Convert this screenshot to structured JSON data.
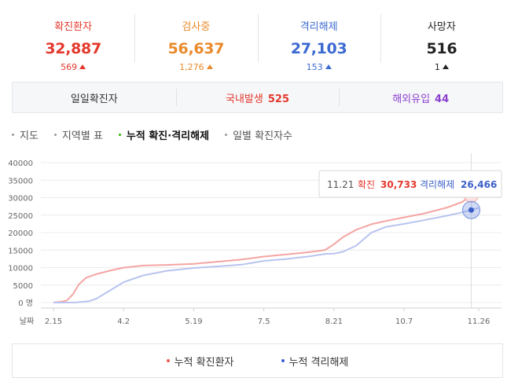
{
  "stats": [
    {
      "label": "확진환자",
      "value": "32,887",
      "delta": "569",
      "color": "#e4382c"
    },
    {
      "label": "검사중",
      "value": "56,637",
      "delta": "1,276",
      "color": "#e98a2c"
    },
    {
      "label": "격리해제",
      "value": "27,103",
      "delta": "153",
      "color": "#3b6ad1"
    },
    {
      "label": "사망자",
      "value": "516",
      "delta": "1",
      "color": "#222222"
    }
  ],
  "daily": {
    "title": "일일확진자",
    "domestic_label": "국내발생",
    "domestic_value": "525",
    "domestic_color": "#e4382c",
    "overseas_label": "해외유입",
    "overseas_value": "44",
    "overseas_color": "#8b3fcf"
  },
  "tabs": [
    {
      "label": "지도",
      "active": false
    },
    {
      "label": "지역별 표",
      "active": false
    },
    {
      "label": "누적 확진·격리해제",
      "active": true
    },
    {
      "label": "일별 확진자수",
      "active": false
    }
  ],
  "chart_data": {
    "type": "line",
    "x_axis_label": "날짜",
    "y_unit": "명",
    "ylim": [
      0,
      40000
    ],
    "yticks": [
      0,
      5000,
      10000,
      15000,
      20000,
      25000,
      30000,
      35000,
      40000
    ],
    "xticks": [
      "2.15",
      "4.2",
      "5.19",
      "7.5",
      "8.21",
      "10.7",
      "11.26"
    ],
    "grid": true,
    "legend_position": "bottom",
    "series": [
      {
        "name": "누적 확진환자",
        "color": "#f4a5a3",
        "x": [
          "2.15",
          "2.20",
          "2.24",
          "2.28",
          "3.3",
          "3.8",
          "3.15",
          "3.25",
          "4.2",
          "4.15",
          "5.1",
          "5.19",
          "6.5",
          "6.20",
          "7.5",
          "7.20",
          "8.5",
          "8.15",
          "8.21",
          "8.27",
          "9.5",
          "9.15",
          "9.25",
          "10.7",
          "10.20",
          "11.5",
          "11.15",
          "11.21",
          "11.26"
        ],
        "values": [
          28,
          200,
          600,
          2337,
          5186,
          7134,
          8162,
          9241,
          9976,
          10591,
          10774,
          11078,
          11719,
          12306,
          13137,
          13745,
          14456,
          15039,
          16670,
          18706,
          20842,
          22391,
          23341,
          24353,
          25424,
          27195,
          28769,
          30733,
          32887
        ]
      },
      {
        "name": "누적 격리해제",
        "color": "#b8c4ef",
        "x": [
          "2.15",
          "3.1",
          "3.10",
          "3.15",
          "3.25",
          "4.2",
          "4.15",
          "5.1",
          "5.19",
          "6.5",
          "6.20",
          "7.5",
          "7.20",
          "8.5",
          "8.15",
          "8.21",
          "8.27",
          "9.5",
          "9.15",
          "9.25",
          "10.7",
          "10.20",
          "11.5",
          "11.15",
          "11.21",
          "11.26"
        ],
        "values": [
          10,
          30,
          400,
          1137,
          3730,
          5828,
          7757,
          9072,
          9888,
          10363,
          10837,
          11914,
          12456,
          13235,
          13901,
          14011,
          14516,
          16297,
          19970,
          21666,
          22505,
          23532,
          24861,
          25807,
          26466,
          27103
        ]
      }
    ]
  },
  "tooltip": {
    "date": "11.21",
    "confirmed_label": "확진",
    "confirmed_value": "30,733",
    "released_label": "격리해제",
    "released_value": "26,466"
  },
  "colors": {
    "confirmed": "#e4382c",
    "released": "#3b6ad1",
    "released_tooltip": "#3b5fc8"
  },
  "legend": [
    {
      "label": "누적 확진환자",
      "dot_color": "#f05a50"
    },
    {
      "label": "누적 격리해제",
      "dot_color": "#3b5fd1"
    }
  ]
}
